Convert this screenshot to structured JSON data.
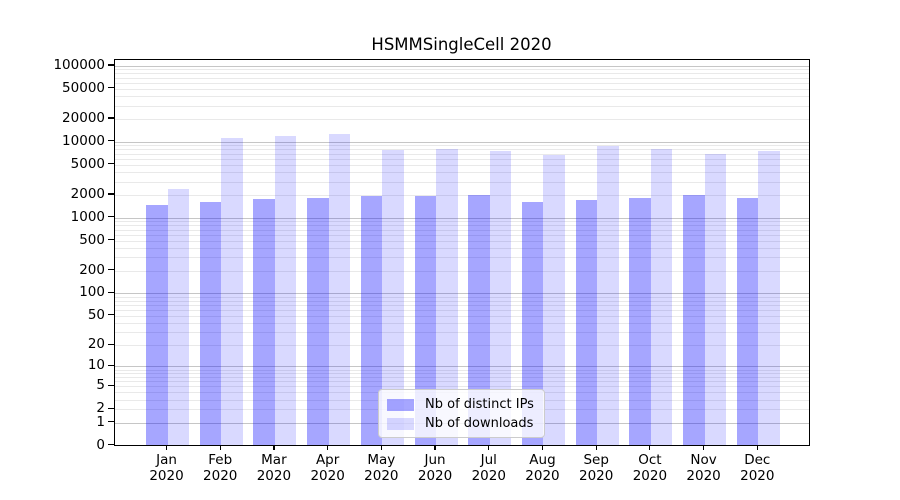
{
  "chart_data": {
    "type": "bar",
    "title": "HSMMSingleCell 2020",
    "categories": [
      "Jan 2020",
      "Feb 2020",
      "Mar 2020",
      "Apr 2020",
      "May 2020",
      "Jun 2020",
      "Jul 2020",
      "Aug 2020",
      "Sep 2020",
      "Oct 2020",
      "Nov 2020",
      "Dec 2020"
    ],
    "series": [
      {
        "name": "Nb of distinct IPs",
        "color": "rgba(0,0,255,0.35)",
        "values": [
          1480,
          1590,
          1750,
          1800,
          1920,
          1920,
          2000,
          1600,
          1710,
          1850,
          1990,
          1820
        ]
      },
      {
        "name": "Nb of downloads",
        "color": "rgba(0,0,255,0.15)",
        "values": [
          2400,
          11300,
          12000,
          12800,
          7900,
          8000,
          7500,
          6800,
          8900,
          8000,
          6900,
          7500
        ]
      }
    ],
    "xlabel": "",
    "ylabel": "",
    "yscale": "log1p",
    "ylim": [
      0,
      120000
    ],
    "yticks": [
      0,
      1,
      2,
      5,
      10,
      20,
      50,
      100,
      200,
      500,
      1000,
      2000,
      5000,
      10000,
      20000,
      50000,
      100000
    ],
    "grid": true,
    "legend_position": "lower center",
    "colors": {
      "major_gridline": "#c6c6c6",
      "minor_gridline": "#e9e9e9",
      "spine": "#000000",
      "legend_border": "#cccccc"
    }
  }
}
